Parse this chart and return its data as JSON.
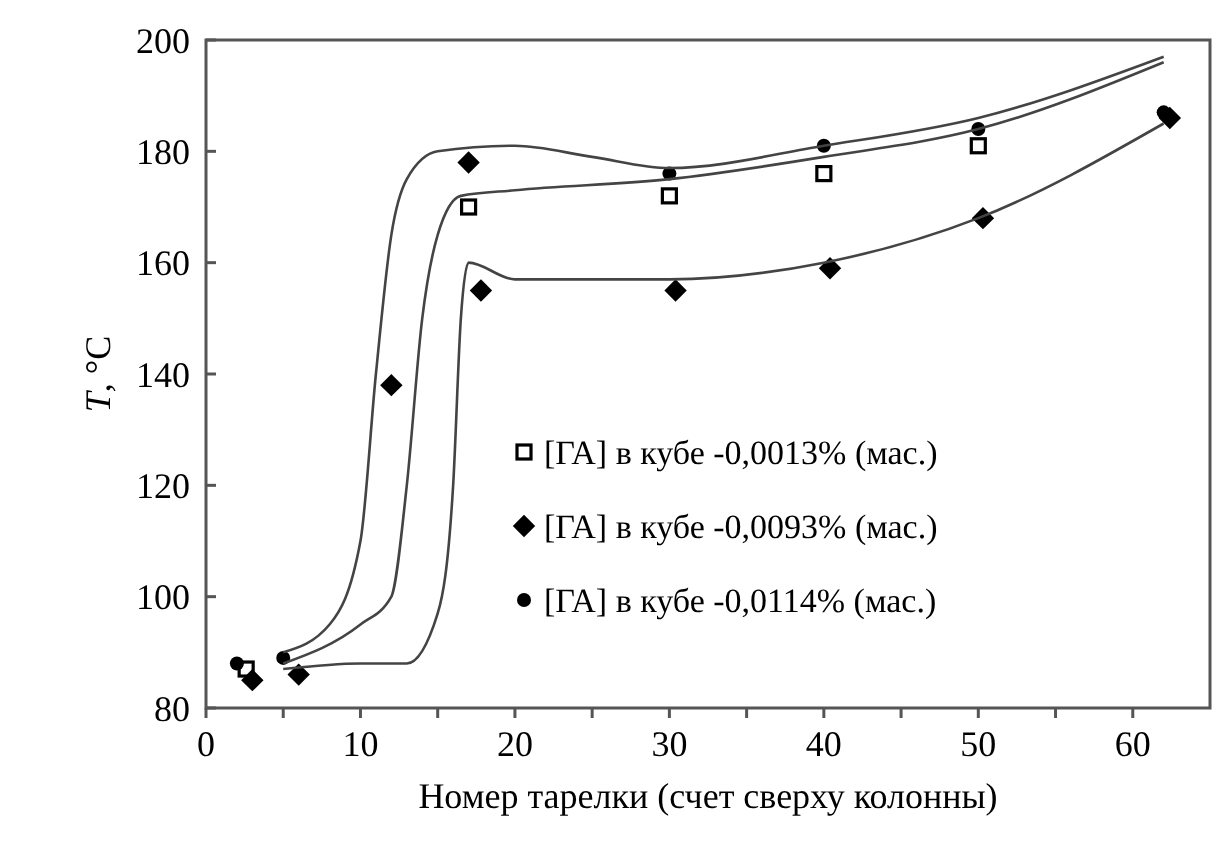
{
  "chart_data": {
    "type": "scatter",
    "xlabel": "Номер тарелки (счет сверху колонны)",
    "ylabel": "T, °C",
    "xlim": [
      0,
      65
    ],
    "ylim": [
      80,
      200
    ],
    "xticks": [
      0,
      {
        "value": 5,
        "label": null
      },
      10,
      {
        "value": 15,
        "label": null
      },
      20,
      {
        "value": 25,
        "label": null
      },
      30,
      {
        "value": 35,
        "label": null
      },
      40,
      {
        "value": 45,
        "label": null
      },
      50,
      {
        "value": 55,
        "label": null
      },
      60
    ],
    "yticks": [
      80,
      100,
      120,
      140,
      160,
      180,
      200
    ],
    "grid": false,
    "legend": "bottom right",
    "series": [
      {
        "name": "[ГА] в кубе -0,0013% (мас.)",
        "color": "#000000",
        "marker": "square",
        "x": [
          2.6,
          17,
          30,
          40,
          50
        ],
        "values": [
          87,
          170,
          172,
          176,
          181
        ]
      },
      {
        "name": "[ГА] в кубе -0,0093% (мас.)",
        "color": "#000000",
        "marker": "diamond",
        "x": [
          3,
          6,
          12,
          17,
          17.8,
          30.4,
          40.4,
          50.3,
          62.4
        ],
        "values": [
          85,
          86,
          138,
          178,
          155,
          155,
          159,
          168,
          186
        ]
      },
      {
        "name": "[ГА] в кубе -0,0114% (мас.)",
        "color": "#000000",
        "marker": "circle",
        "x": [
          2,
          5,
          30,
          40,
          50,
          62
        ],
        "values": [
          88,
          89,
          176,
          181,
          184,
          187
        ]
      },
      {
        "type": "line",
        "color": "#444444",
        "marker": "none",
        "x": [
          5,
          8,
          10,
          11,
          12,
          13,
          15,
          20,
          25,
          30,
          40,
          50,
          62
        ],
        "values": [
          90,
          95,
          110,
          140,
          165,
          175,
          180,
          181,
          179,
          177,
          181,
          186,
          197
        ]
      },
      {
        "type": "line",
        "color": "#444444",
        "marker": "none",
        "x": [
          5,
          10,
          12,
          13,
          14,
          15,
          16.5,
          20,
          30,
          40,
          50,
          62
        ],
        "values": [
          88,
          95,
          100,
          120,
          150,
          165,
          172,
          173,
          175,
          179,
          184,
          196
        ]
      },
      {
        "type": "line",
        "color": "#444444",
        "marker": "none",
        "x": [
          5,
          10,
          13,
          15,
          16,
          16.5,
          17,
          20,
          25,
          30,
          40,
          50,
          62
        ],
        "values": [
          87,
          88,
          88,
          97,
          120,
          150,
          160,
          157,
          157,
          157,
          160,
          168,
          185
        ]
      }
    ]
  }
}
